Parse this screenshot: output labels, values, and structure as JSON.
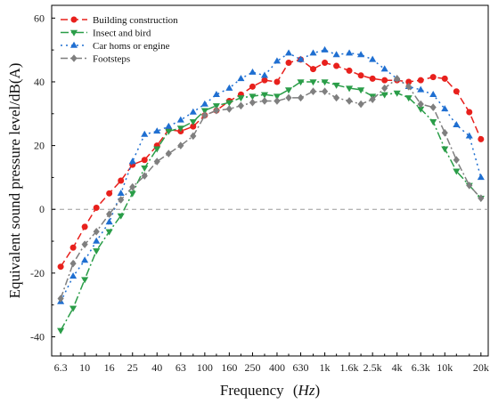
{
  "chart_data": {
    "type": "line",
    "title": "",
    "xlabel": "Frequency",
    "xlabel_unit": "Hz",
    "ylabel": "Equivalent sound pressure level/dB(A)",
    "xscale": "log",
    "ylim": [
      -46,
      64
    ],
    "yticks": [
      -40,
      -20,
      0,
      20,
      40,
      60
    ],
    "legend_position": "top-left",
    "x": [
      6.3,
      8,
      10,
      12.5,
      16,
      20,
      25,
      31.5,
      40,
      50,
      63,
      80,
      100,
      125,
      160,
      200,
      250,
      315,
      400,
      500,
      630,
      800,
      1000,
      1250,
      1600,
      2000,
      2500,
      3150,
      4000,
      5000,
      6300,
      8000,
      10000,
      12500,
      16000,
      20000
    ],
    "x_tick_labels": [
      "6.3",
      "10",
      "16",
      "25",
      "40",
      "63",
      "100",
      "160",
      "250",
      "400",
      "630",
      "1k",
      "1.6k",
      "2.5k",
      "4k",
      "6.3k",
      "10k",
      "20k"
    ],
    "x_tick_values": [
      6.3,
      10,
      16,
      25,
      40,
      63,
      100,
      160,
      250,
      400,
      630,
      1000,
      1600,
      2500,
      4000,
      6300,
      10000,
      20000
    ],
    "series": [
      {
        "name": "Building construction",
        "color": "#e8201c",
        "marker": "circle",
        "dash": "8,4",
        "values": [
          -18,
          -12,
          -5.5,
          0.5,
          5,
          9,
          14,
          15.5,
          20,
          25,
          24.5,
          26,
          29.5,
          31,
          34,
          36,
          38.5,
          40.5,
          40,
          46,
          47,
          44,
          46,
          45,
          43.5,
          42,
          41,
          40.5,
          40.5,
          40,
          40.5,
          41.5,
          41,
          37,
          30.5,
          22
        ]
      },
      {
        "name": "Insect and bird",
        "color": "#2a9d48",
        "marker": "triangle-down",
        "dash": "9,3,2,3",
        "values": [
          -38,
          -31,
          -22,
          -13,
          -7,
          -2,
          5,
          13,
          19,
          24.5,
          25.5,
          27.5,
          31,
          32.5,
          33.5,
          35,
          35.5,
          36,
          35.5,
          37.5,
          40,
          40,
          40,
          39,
          38,
          37.5,
          35.5,
          36,
          36.5,
          35,
          31.5,
          27.5,
          19,
          12,
          7.5,
          3.5
        ]
      },
      {
        "name": "Car homs or engine",
        "color": "#1f6fd1",
        "marker": "triangle-up",
        "dash": "2,4",
        "values": [
          -29,
          -21,
          -16,
          -10,
          -4,
          5,
          15,
          23.5,
          24.5,
          26,
          28,
          30.5,
          33,
          36,
          38,
          41,
          43,
          42,
          46.5,
          49,
          47,
          49,
          50,
          48.5,
          49,
          48.5,
          47,
          44,
          41,
          38.5,
          37.5,
          36,
          31.5,
          26.5,
          23,
          10
        ]
      },
      {
        "name": "Footsteps",
        "color": "#7f7f7f",
        "marker": "diamond",
        "dash": "8,3,2,3",
        "values": [
          -28,
          -17,
          -11,
          -7,
          -1.5,
          3,
          7,
          10.5,
          15,
          17.5,
          20,
          23,
          29.5,
          31,
          31.5,
          32.5,
          33.5,
          34,
          34,
          35,
          35,
          37,
          37,
          35,
          34,
          33,
          34.5,
          38,
          41,
          38.5,
          33,
          32,
          24,
          15.5,
          7.5,
          3.5
        ]
      }
    ],
    "reference_line": {
      "y": 0,
      "color": "#9a9a9a",
      "dash": "5,4"
    }
  }
}
